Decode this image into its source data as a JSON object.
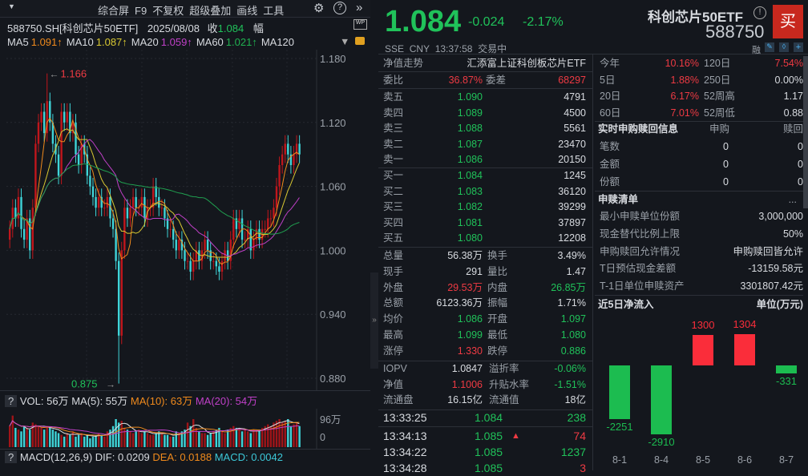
{
  "toolbar": {
    "items": [
      "综合屏",
      "F9",
      "不复权",
      "超级叠加",
      "画线",
      "工具"
    ],
    "gear": "gear-icon",
    "help": "?",
    "more": "»"
  },
  "chart_header": {
    "code": "588750.SH[科创芯片50ETF]",
    "date": "2025/08/08",
    "close_label": "收",
    "close": "1.084",
    "amp_label": "幅"
  },
  "ma": [
    {
      "label": "MA5",
      "value": "1.091↑",
      "color": "#f08a1c"
    },
    {
      "label": "MA10",
      "value": "1.087↑",
      "color": "#d8c832"
    },
    {
      "label": "MA20",
      "value": "1.059↑",
      "color": "#c040c8"
    },
    {
      "label": "MA60",
      "value": "1.021↑",
      "color": "#20b050"
    },
    {
      "label": "MA120",
      "value": ""
    }
  ],
  "chart_data": {
    "type": "candlestick",
    "y_ticks": [
      "1.180",
      "1.120",
      "1.060",
      "1.000",
      "0.940",
      "0.880"
    ],
    "ylim": [
      0.87,
      1.185
    ],
    "high_label": "1.166",
    "low_label": "0.875",
    "closes": [
      1.02,
      1.04,
      1.03,
      1.05,
      1.02,
      1.01,
      1.03,
      1.0,
      1.04,
      1.1,
      1.12,
      1.13,
      1.11,
      1.14,
      1.12,
      1.1,
      1.09,
      1.07,
      1.13,
      1.12,
      1.13,
      1.11,
      1.12,
      1.09,
      1.08,
      1.1,
      1.09,
      1.07,
      1.06,
      1.05,
      1.04,
      1.05,
      1.04,
      1.04,
      1.05,
      1.03,
      1.02,
      0.99,
      0.92,
      1.0,
      1.04,
      1.03,
      1.04,
      1.05,
      1.04,
      1.04,
      1.05,
      1.03,
      1.04,
      1.04,
      1.06,
      1.05,
      1.04,
      1.04,
      1.03,
      1.02,
      1.02,
      1.01,
      1.0,
      1.01,
      1.0,
      0.99,
      0.99,
      0.98,
      0.99,
      1.0,
      0.99,
      1.0,
      1.01,
      1.0,
      0.99,
      0.99,
      0.985,
      0.98,
      0.99,
      1.0,
      0.99,
      1.01,
      1.03,
      1.02,
      1.03,
      1.01,
      1.01,
      1.02,
      1.0,
      1.01,
      1.02,
      1.01,
      1.02,
      1.02,
      1.03,
      1.03,
      1.04,
      1.06,
      1.08,
      1.09,
      1.1,
      1.09,
      1.08,
      1.09,
      1.1,
      1.09
    ]
  },
  "volume": {
    "help": "?",
    "label": "VOL: 56万",
    "ma5": "MA(5): 55万",
    "ma10": "MA(10): 63万",
    "ma20": "MA(20): 54万",
    "axis_top": "96万",
    "axis_zero": "0",
    "values": [
      60,
      90,
      55,
      50,
      45,
      60,
      55,
      50,
      70,
      65,
      60,
      55,
      50,
      60,
      55,
      50,
      45,
      40,
      35,
      30,
      40,
      35,
      45,
      30,
      35,
      40,
      30,
      35,
      25,
      30,
      35,
      40,
      35,
      30,
      45,
      50,
      60,
      80,
      70,
      75,
      55,
      50,
      45,
      40,
      45,
      50,
      40,
      45,
      40,
      35,
      35,
      40,
      45,
      40,
      35,
      35,
      30,
      30,
      45,
      40,
      45,
      50,
      70,
      60,
      80,
      55,
      45,
      40,
      40,
      35,
      40,
      45,
      50,
      55,
      45,
      40,
      50,
      55,
      60,
      55,
      50,
      45,
      50,
      45,
      40,
      50,
      45,
      50,
      55,
      60,
      65,
      60,
      70,
      75,
      80,
      70,
      75,
      80,
      60,
      65,
      70,
      60
    ]
  },
  "macd": {
    "help": "?",
    "label": "MACD(12,26,9)",
    "dif": "DIF: 0.0209",
    "dea": "DEA: 0.0188",
    "macd": "MACD: 0.0042"
  },
  "quote": {
    "price": "1.084",
    "change": "-0.024",
    "pct": "-2.17%",
    "name": "科创芯片50ETF",
    "code": "588750",
    "buy": "买",
    "market": "SSE",
    "currency": "CNY",
    "time": "13:37:58",
    "status": "交易中",
    "rong": "融"
  },
  "nav": {
    "label": "净值走势",
    "fund": "汇添富上证科创板芯片ETF"
  },
  "weibi": {
    "l1": "委比",
    "v1": "36.87%",
    "l2": "委差",
    "v2": "68297"
  },
  "asks": [
    {
      "l": "卖五",
      "p": "1.090",
      "v": "4791"
    },
    {
      "l": "卖四",
      "p": "1.089",
      "v": "4500"
    },
    {
      "l": "卖三",
      "p": "1.088",
      "v": "5561"
    },
    {
      "l": "卖二",
      "p": "1.087",
      "v": "23470"
    },
    {
      "l": "卖一",
      "p": "1.086",
      "v": "20150"
    }
  ],
  "bids": [
    {
      "l": "买一",
      "p": "1.084",
      "v": "1245"
    },
    {
      "l": "买二",
      "p": "1.083",
      "v": "36120"
    },
    {
      "l": "买三",
      "p": "1.082",
      "v": "39299"
    },
    {
      "l": "买四",
      "p": "1.081",
      "v": "37897"
    },
    {
      "l": "买五",
      "p": "1.080",
      "v": "12208"
    }
  ],
  "stats": [
    {
      "l1": "总量",
      "v1": "56.38万",
      "c1": "w",
      "l2": "换手",
      "v2": "3.49%",
      "c2": "w"
    },
    {
      "l1": "现手",
      "v1": "291",
      "c1": "w",
      "l2": "量比",
      "v2": "1.47",
      "c2": "w"
    },
    {
      "l1": "外盘",
      "v1": "29.53万",
      "c1": "r",
      "l2": "内盘",
      "v2": "26.85万",
      "c2": "g"
    },
    {
      "l1": "总额",
      "v1": "6123.36万",
      "c1": "w",
      "l2": "振幅",
      "v2": "1.71%",
      "c2": "w"
    },
    {
      "l1": "均价",
      "v1": "1.086",
      "c1": "g",
      "l2": "开盘",
      "v2": "1.097",
      "c2": "g"
    },
    {
      "l1": "最高",
      "v1": "1.099",
      "c1": "g",
      "l2": "最低",
      "v2": "1.080",
      "c2": "g"
    },
    {
      "l1": "涨停",
      "v1": "1.330",
      "c1": "r",
      "l2": "跌停",
      "v2": "0.886",
      "c2": "g"
    }
  ],
  "etf": [
    {
      "l1": "IOPV",
      "v1": "1.0847",
      "c1": "w",
      "l2": "溢折率",
      "v2": "-0.06%",
      "c2": "g"
    },
    {
      "l1": "净值",
      "v1": "1.1006",
      "c1": "r",
      "l2": "升贴水率",
      "v2": "-1.51%",
      "c2": "g"
    },
    {
      "l1": "流通盘",
      "v1": "16.15亿",
      "c1": "w",
      "l2": "流通值",
      "v2": "18亿",
      "c2": "w"
    }
  ],
  "ticks": [
    {
      "t": "13:33:25",
      "p": "1.084",
      "v": "238",
      "c": "g",
      "up": false
    },
    {
      "t": "13:34:13",
      "p": "1.085",
      "v": "74",
      "c": "r",
      "up": true
    },
    {
      "t": "13:34:22",
      "p": "1.085",
      "v": "1237",
      "c": "g",
      "up": false
    },
    {
      "t": "13:34:28",
      "p": "1.085",
      "v": "3",
      "c": "r",
      "up": false
    }
  ],
  "perf": [
    {
      "l1": "今年",
      "v1": "10.16%",
      "c1": "r",
      "l2": "120日",
      "v2": "7.54%",
      "c2": "r"
    },
    {
      "l1": "5日",
      "v1": "1.88%",
      "c1": "r",
      "l2": "250日",
      "v2": "0.00%",
      "c2": "w"
    },
    {
      "l1": "20日",
      "v1": "6.17%",
      "c1": "r",
      "l2": "52周高",
      "v2": "1.17",
      "c2": "w"
    },
    {
      "l1": "60日",
      "v1": "7.01%",
      "c1": "r",
      "l2": "52周低",
      "v2": "0.88",
      "c2": "w"
    }
  ],
  "creation": {
    "title": "实时申购赎回信息",
    "h1": "申购",
    "h2": "赎回",
    "rows": [
      {
        "l": "笔数",
        "a": "0",
        "b": "0"
      },
      {
        "l": "金额",
        "a": "0",
        "b": "0"
      },
      {
        "l": "份额",
        "a": "0",
        "b": "0"
      }
    ]
  },
  "pcf": {
    "title": "申赎清单",
    "more": "...",
    "rows": [
      {
        "l": "最小申赎单位份额",
        "v": "3,000,000"
      },
      {
        "l": "现金替代比例上限",
        "v": "50%"
      },
      {
        "l": "申购赎回允许情况",
        "v": "申购赎回皆允许"
      },
      {
        "l": "T日预估现金差额",
        "v": "-13159.58元"
      },
      {
        "l": "T-1日单位申赎资产",
        "v": "3301807.42元"
      }
    ]
  },
  "flow": {
    "title": "近5日净流入",
    "unit": "单位(万元)",
    "categories": [
      "8-1",
      "8-4",
      "8-5",
      "8-6",
      "8-7"
    ],
    "values": [
      -2251,
      -2910,
      1300,
      1304,
      -331
    ],
    "up_color": "#fa2d3a",
    "down_color": "#1cbc50"
  }
}
